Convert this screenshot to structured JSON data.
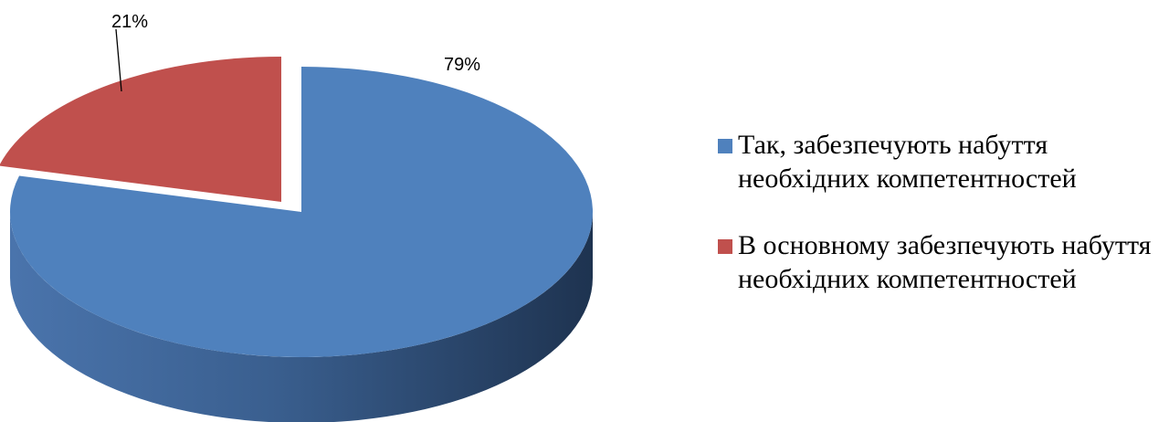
{
  "chart_data": {
    "type": "pie",
    "title": "",
    "categories": [
      "Так, забезпечують набуття необхідних компетентностей",
      "В основному забезпечують набуття необхідних компетентностей"
    ],
    "values": [
      79,
      21
    ],
    "labels": [
      "79%",
      "21%"
    ],
    "colors": [
      "#4F81BD",
      "#C0504D"
    ],
    "legend_position": "right",
    "style": "3d-exploded"
  },
  "legend": {
    "items": [
      {
        "label": "Так, забезпечують набуття необхідних компетентностей",
        "color": "#4F81BD"
      },
      {
        "label": "В основному забезпечують набуття необхідних компетентностей",
        "color": "#C0504D"
      }
    ]
  }
}
